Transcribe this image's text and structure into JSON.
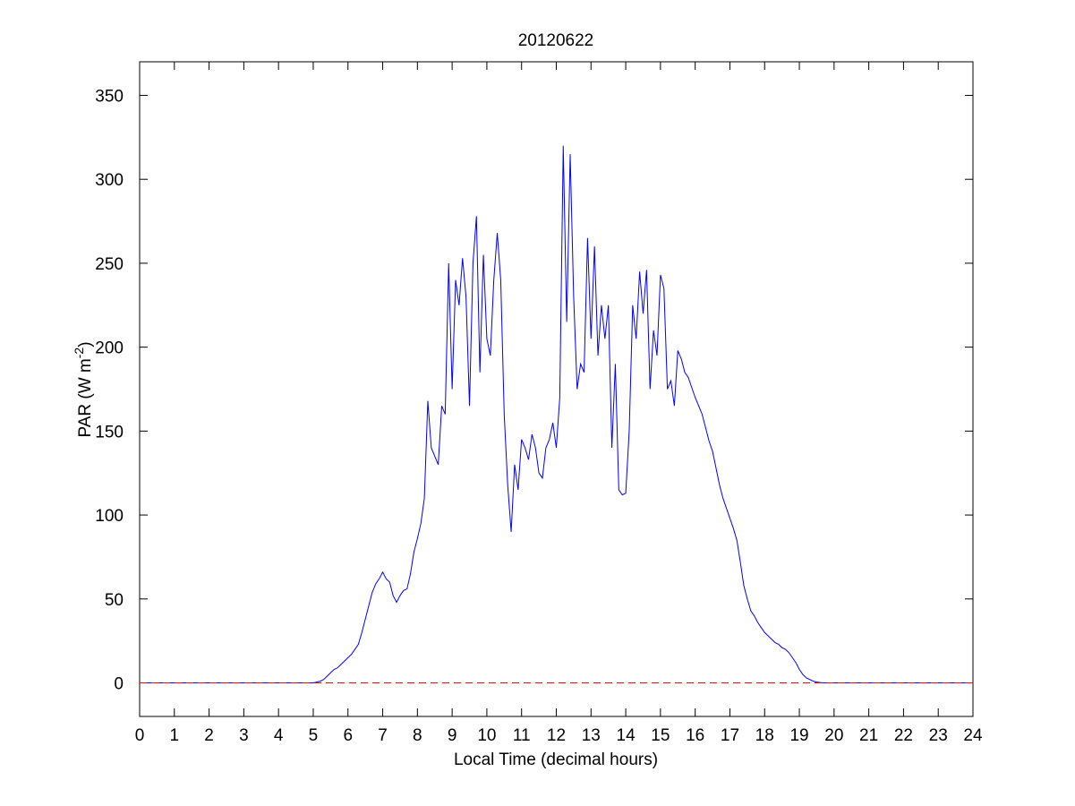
{
  "chart_data": {
    "type": "line",
    "title": "20120622",
    "xlabel": "Local Time (decimal hours)",
    "ylabel": {
      "text": "PAR (W m",
      "superscript": "-2",
      "suffix": ")"
    },
    "x": [
      0,
      5,
      5.1,
      5.2,
      5.3,
      5.4,
      5.5,
      5.6,
      5.7,
      5.8,
      5.9,
      6,
      6.1,
      6.2,
      6.3,
      6.4,
      6.5,
      6.6,
      6.7,
      6.8,
      6.9,
      7,
      7.1,
      7.2,
      7.3,
      7.4,
      7.5,
      7.6,
      7.7,
      7.8,
      7.9,
      8,
      8.1,
      8.2,
      8.3,
      8.4,
      8.5,
      8.6,
      8.7,
      8.8,
      8.9,
      9,
      9.1,
      9.2,
      9.3,
      9.4,
      9.5,
      9.6,
      9.7,
      9.8,
      9.9,
      10,
      10.1,
      10.2,
      10.3,
      10.4,
      10.5,
      10.6,
      10.7,
      10.8,
      10.9,
      11,
      11.1,
      11.2,
      11.3,
      11.4,
      11.5,
      11.6,
      11.7,
      11.8,
      11.9,
      12,
      12.1,
      12.2,
      12.3,
      12.4,
      12.5,
      12.6,
      12.7,
      12.8,
      12.9,
      13,
      13.1,
      13.2,
      13.3,
      13.4,
      13.5,
      13.6,
      13.7,
      13.8,
      13.9,
      14,
      14.1,
      14.2,
      14.3,
      14.4,
      14.5,
      14.6,
      14.7,
      14.8,
      14.9,
      15,
      15.1,
      15.2,
      15.3,
      15.4,
      15.5,
      15.6,
      15.7,
      15.8,
      15.9,
      16,
      16.1,
      16.2,
      16.3,
      16.4,
      16.5,
      16.6,
      16.7,
      16.8,
      16.9,
      17,
      17.1,
      17.2,
      17.3,
      17.4,
      17.5,
      17.6,
      17.7,
      17.8,
      17.9,
      18,
      18.1,
      18.2,
      18.3,
      18.4,
      18.5,
      18.6,
      18.7,
      18.8,
      18.9,
      19,
      19.1,
      19.2,
      19.3,
      19.4,
      19.5,
      19.6,
      19.7,
      24
    ],
    "values": [
      0,
      0,
      0.5,
      1,
      2,
      4,
      6,
      8,
      9,
      11,
      13,
      15,
      17,
      20,
      23,
      30,
      38,
      46,
      54,
      59,
      62,
      66,
      62,
      60,
      52,
      48,
      52,
      55,
      56,
      65,
      78,
      86,
      95,
      110,
      168,
      140,
      135,
      130,
      165,
      160,
      250,
      175,
      240,
      225,
      253,
      230,
      165,
      250,
      278,
      185,
      255,
      205,
      195,
      240,
      268,
      240,
      160,
      118,
      90,
      130,
      115,
      145,
      140,
      133,
      148,
      140,
      125,
      122,
      140,
      145,
      155,
      140,
      170,
      320,
      215,
      315,
      230,
      175,
      190,
      185,
      265,
      205,
      260,
      195,
      225,
      205,
      225,
      140,
      190,
      115,
      112,
      113,
      150,
      225,
      205,
      245,
      220,
      246,
      175,
      210,
      195,
      243,
      235,
      175,
      180,
      165,
      198,
      193,
      185,
      182,
      176,
      170,
      165,
      160,
      152,
      144,
      138,
      128,
      118,
      110,
      104,
      98,
      92,
      85,
      72,
      58,
      50,
      43,
      40,
      36,
      33,
      30,
      28,
      26,
      24,
      23,
      21,
      20,
      18,
      15,
      12,
      8,
      5,
      3,
      2,
      1,
      0.5,
      0.2,
      0,
      0
    ],
    "color": "#0000ff",
    "reference_line": {
      "value": 0,
      "color": "#ff0000",
      "dashed": true
    },
    "xlim": [
      0,
      24
    ],
    "xticks": [
      0,
      1,
      2,
      3,
      4,
      5,
      6,
      7,
      8,
      9,
      10,
      11,
      12,
      13,
      14,
      15,
      16,
      17,
      18,
      19,
      20,
      21,
      22,
      23,
      24
    ],
    "ylim": [
      -20,
      370
    ],
    "yticks": [
      0,
      50,
      100,
      150,
      200,
      250,
      300,
      350
    ]
  }
}
